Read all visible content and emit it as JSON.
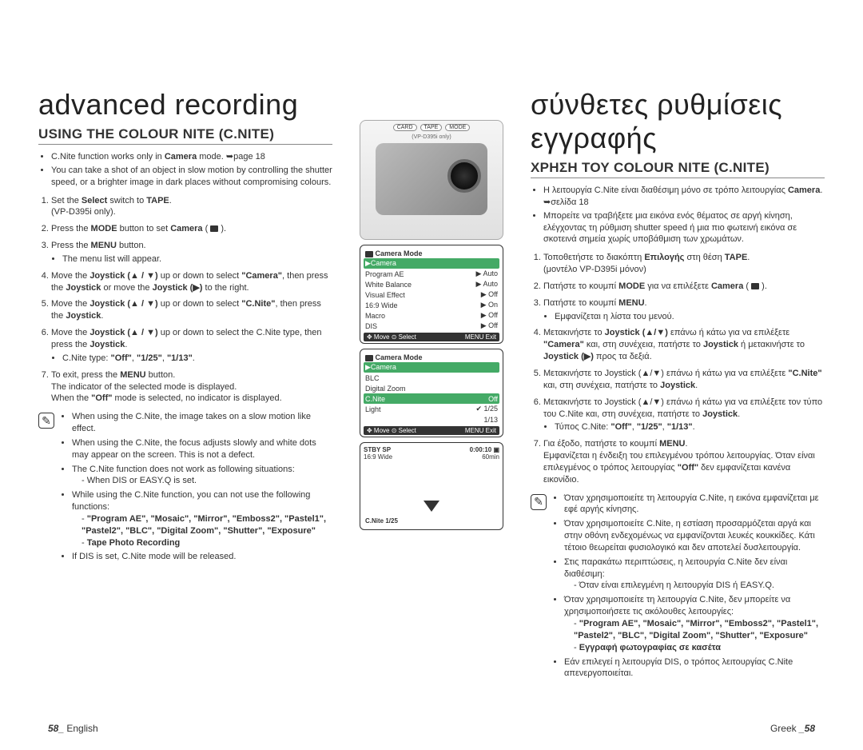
{
  "left": {
    "title": "advanced recording",
    "heading": "USING THE COLOUR NITE (C.NITE)",
    "bullets": [
      "C.Nite function works only in <b>Camera</b> mode. ➥page 18",
      "You can take a shot of an object in slow motion by controlling the shutter speed, or a brighter image in dark places without compromising colours."
    ],
    "steps": [
      "Set the <b>Select</b> switch to <b>TAPE</b>.<br>(VP-D395i only).",
      "Press the <b>MODE</b> button to set <b>Camera</b> ( <span class='ico-cam'></span> ).",
      "Press the <b>MENU</b> button.<ul><li>The menu list will appear.</li></ul>",
      "Move the <b>Joystick (▲ / ▼)</b> up or down to select <b>\"Camera\"</b>, then press the <b>Joystick</b> or move the <b>Joystick (▶)</b> to the right.",
      "Move the <b>Joystick (▲ / ▼)</b> up or down to select <b>\"C.Nite\"</b>, then press the <b>Joystick</b>.",
      "Move the <b>Joystick (▲ / ▼)</b> up or down to select the C.Nite type, then press the <b>Joystick</b>.<ul><li>C.Nite type: <b>\"Off\"</b>, <b>\"1/25\"</b>, <b>\"1/13\"</b>.</li></ul>",
      "To exit, press the <b>MENU</b> button.<br>The indicator of the selected mode is displayed.<br>When the <b>\"Off\"</b> mode is selected, no indicator is displayed."
    ],
    "notes": [
      "When using the C.Nite, the image takes on a slow motion like effect.",
      "When using the C.Nite, the focus adjusts slowly and white dots may appear on the screen. This is not a defect.",
      "The C.Nite function does not work as following situations:<div class='note-sub'>- When DIS or EASY.Q is set.</div>",
      "While using the C.Nite function, you can not use the following functions:<div class='note-sub'>- <b>\"Program AE\", \"Mosaic\", \"Mirror\", \"Emboss2\", \"Pastel1\", \"Pastel2\", \"BLC\", \"Digital Zoom\", \"Shutter\", \"Exposure\"</b></div><div class='note-sub'>- <b>Tape Photo Recording</b></div>",
      "If DIS is set, C.Nite mode will be released."
    ],
    "footer_page": "58_",
    "footer_lang": "English"
  },
  "right": {
    "title": "σύνθετες ρυθμίσεις εγγραφής",
    "heading": "ΧΡΗΣΗ ΤΟΥ COLOUR NITE (C.NITE)",
    "bullets": [
      "Η λειτουργία C.Nite είναι διαθέσιμη μόνο σε τρόπο λειτουργίας <b>Camera</b>. ➥σελίδα 18",
      "Μπορείτε να τραβήξετε μια εικόνα ενός θέματος σε αργή κίνηση, ελέγχοντας τη ρύθμιση shutter speed ή μια πιο φωτεινή εικόνα σε σκοτεινά σημεία χωρίς υποβάθμιση των χρωμάτων."
    ],
    "steps": [
      "Τοποθετήστε το διακόπτη <b>Επιλογής</b> στη θέση <b>TAPE</b>.<br>(μοντέλο VP-D395i μόνον)",
      "Πατήστε το κουμπί <b>MODE</b> για να επιλέξετε <b>Camera</b> ( <span class='ico-cam'></span> ).",
      "Πατήστε το κουμπί <b>MENU</b>.<ul><li>Εμφανίζεται η λίστα του μενού.</li></ul>",
      "Μετακινήστε το <b>Joystick (▲/▼)</b> επάνω ή κάτω για να επιλέξετε <b>\"Camera\"</b> και, στη συνέχεια, πατήστε το <b>Joystick</b> ή μετακινήστε το <b>Joystick (▶)</b> προς τα δεξιά.",
      "Μετακινήστε το Joystick (▲/▼) επάνω ή κάτω για να επιλέξετε <b>\"C.Nite\"</b> και, στη συνέχεια, πατήστε το <b>Joystick</b>.",
      "Μετακινήστε το Joystick (▲/▼) επάνω ή κάτω για να επιλέξετε τον τύπο του C.Nite και, στη συνέχεια, πατήστε το <b>Joystick</b>.<ul><li>Τύπος C.Nite: <b>\"Off\"</b>, <b>\"1/25\"</b>, <b>\"1/13\"</b>.</li></ul>",
      "Για έξοδο, πατήστε το κουμπί <b>MENU</b>.<br>Εμφανίζεται η ένδειξη του επιλεγμένου τρόπου λειτουργίας. Όταν είναι επιλεγμένος ο τρόπος λειτουργίας <b>\"Off\"</b> δεν εμφανίζεται κανένα εικονίδιο."
    ],
    "notes": [
      "Όταν χρησιμοποιείτε τη λειτουργία C.Nite, η εικόνα εμφανίζεται με εφέ αργής κίνησης.",
      "Όταν χρησιμοποιείτε C.Nite, η εστίαση προσαρμόζεται αργά και στην οθόνη ενδεχομένως να εμφανίζονται λευκές κουκκίδες. Κάτι τέτοιο θεωρείται φυσιολογικό και δεν αποτελεί δυσλειτουργία.",
      "Στις παρακάτω περιπτώσεις, η λειτουργία C.Nite δεν είναι διαθέσιμη:<div class='note-sub'>- Όταν είναι επιλεγμένη η λειτουργία DIS ή EASY.Q.</div>",
      "Όταν χρησιμοποιείτε τη λειτουργία C.Nite, δεν μπορείτε να χρησιμοποιήσετε τις ακόλουθες λειτουργίες:<div class='note-sub'>- <b>\"Program AE\", \"Mosaic\", \"Mirror\", \"Emboss2\", \"Pastel1\", \"Pastel2\", \"BLC\", \"Digital Zoom\", \"Shutter\", \"Exposure\"</b></div><div class='note-sub'>- <b>Εγγραφή φωτογραφίας σε κασέτα</b></div>",
      "Εάν επιλεγεί η λειτουργία DIS, ο τρόπος λειτουργίας C.Nite απενεργοποιείται."
    ],
    "footer_lang": "Greek",
    "footer_page": "_58"
  },
  "center": {
    "cam_labels": {
      "card": "CARD",
      "tape": "TAPE",
      "mode": "MODE",
      "sub": "(VP-D395i only)"
    },
    "screen1": {
      "title": "Camera Mode",
      "sel": "▶Camera",
      "rows": [
        {
          "l": "Program AE",
          "r": "▶ Auto"
        },
        {
          "l": "White Balance",
          "r": "▶ Auto"
        },
        {
          "l": "Visual Effect",
          "r": "▶ Off"
        },
        {
          "l": "16:9 Wide",
          "r": "▶ On"
        },
        {
          "l": "Macro",
          "r": "▶ Off"
        },
        {
          "l": "DIS",
          "r": "▶ Off"
        }
      ],
      "bottom_l": "✥ Move   ⊙ Select",
      "bottom_r": "MENU Exit"
    },
    "screen2": {
      "title": "Camera Mode",
      "sel": "▶Camera",
      "rows": [
        {
          "l": "BLC",
          "r": ""
        },
        {
          "l": "Digital Zoom",
          "r": ""
        },
        {
          "l": "C.Nite",
          "r": "Off",
          "hl": true
        },
        {
          "l": "Light",
          "r": "✔ 1/25"
        },
        {
          "l": "",
          "r": "1/13"
        }
      ],
      "bottom_l": "✥ Move   ⊙ Select",
      "bottom_r": "MENU Exit"
    },
    "stby": {
      "top_l": "STBY  SP",
      "top_r": "0:00:10 ▣",
      "wide": "16:9 Wide",
      "min": "60min",
      "cnite": "C.Nite 1/25"
    }
  }
}
